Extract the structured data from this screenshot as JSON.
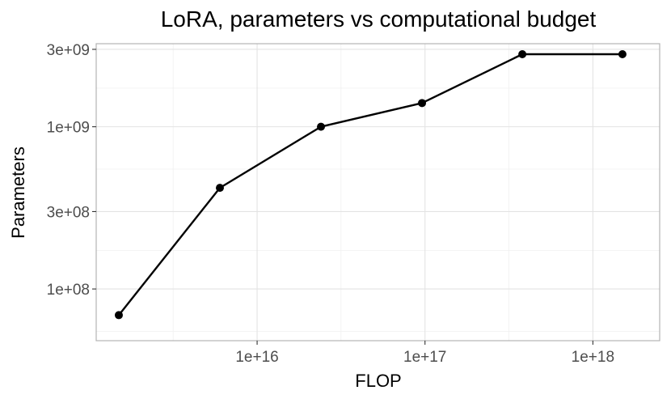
{
  "chart_data": {
    "type": "line",
    "title": "LoRA, parameters vs computational budget",
    "xlabel": "FLOP",
    "ylabel": "Parameters",
    "x_scale": "log10",
    "y_scale": "log10",
    "xlim": [
      1100000000000000.0,
      2.5e+18
    ],
    "ylim": [
      48000000.0,
      3250000000.0
    ],
    "x_ticks": [
      {
        "value": 1e+16,
        "label": "1e+16"
      },
      {
        "value": 1e+17,
        "label": "1e+17"
      },
      {
        "value": 1e+18,
        "label": "1e+18"
      }
    ],
    "x_minor_ticks": [
      3160000000000000.0,
      3.16e+16,
      3.16e+17
    ],
    "y_ticks": [
      {
        "value": 100000000.0,
        "label": "1e+08"
      },
      {
        "value": 300000000.0,
        "label": "3e+08"
      },
      {
        "value": 1000000000.0,
        "label": "1e+09"
      },
      {
        "value": 3000000000.0,
        "label": "3e+09"
      }
    ],
    "y_minor_ticks": [
      54800000.0,
      173000000.0,
      548000000.0,
      1730000000.0
    ],
    "grid": true,
    "line_color": "#000000",
    "point_color": "#000000",
    "series": [
      {
        "x": [
          1500000000000000.0,
          6000000000000000.0,
          2.4e+16,
          9.6e+16,
          3.8e+17,
          1.5e+18
        ],
        "y": [
          69000000.0,
          420000000.0,
          1000000000.0,
          1400000000.0,
          2800000000.0,
          2800000000.0
        ]
      }
    ]
  }
}
